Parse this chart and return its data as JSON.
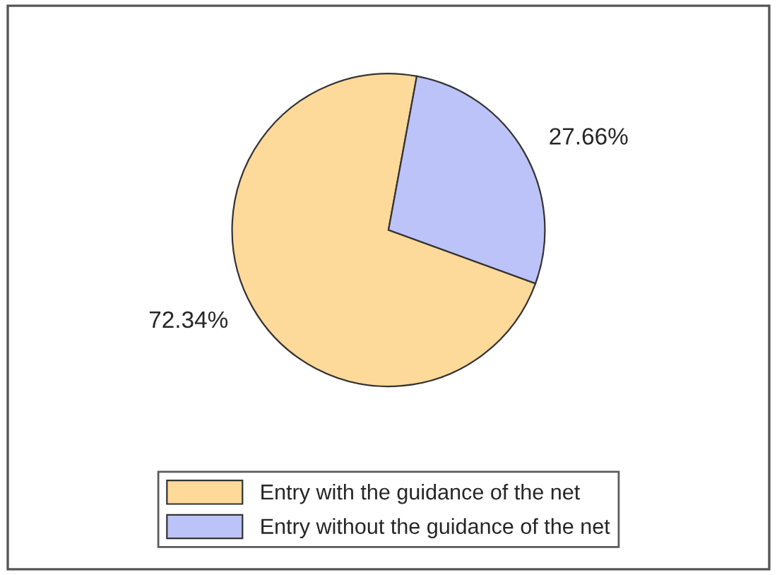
{
  "chart_data": {
    "type": "pie",
    "categories": [
      "Entry with the guidance of the net",
      "Entry without the guidance of the net"
    ],
    "values": [
      72.34,
      27.66
    ],
    "colors": [
      "#fdd99a",
      "#bcc3f8"
    ],
    "value_labels": [
      "72.34%",
      "27.66%"
    ],
    "legend": "bottom"
  }
}
